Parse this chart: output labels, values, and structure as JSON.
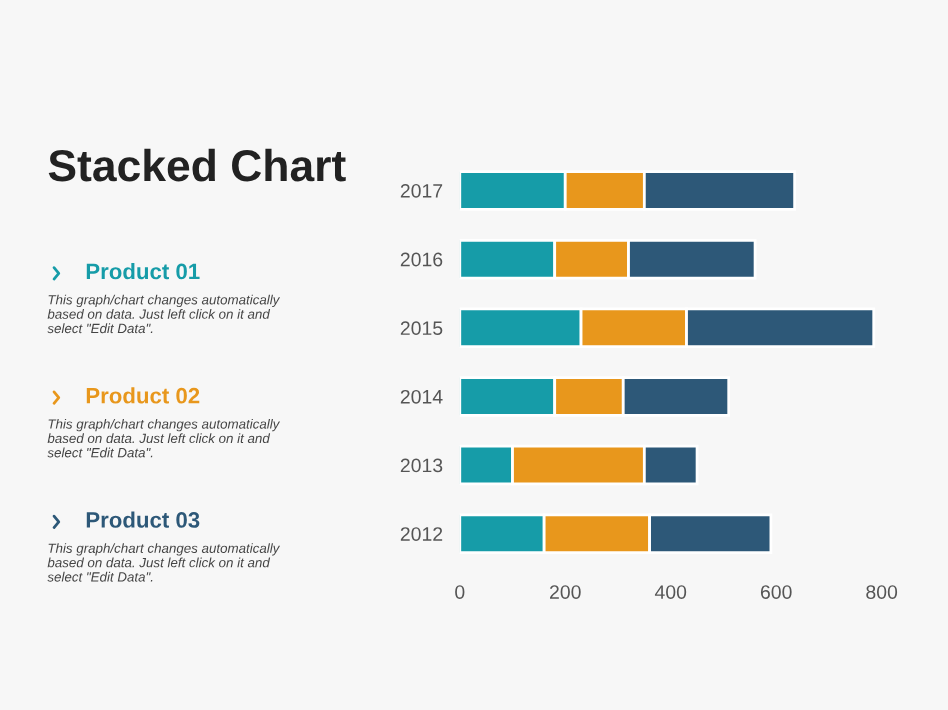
{
  "chart_data": {
    "type": "bar",
    "orientation": "horizontal",
    "stacked": true,
    "title": "Stacked Chart",
    "categories": [
      "2017",
      "2016",
      "2015",
      "2014",
      "2013",
      "2012"
    ],
    "series": [
      {
        "name": "Product 01",
        "color": "#169ca8",
        "values": [
          200,
          180,
          230,
          180,
          100,
          160
        ]
      },
      {
        "name": "Product 02",
        "color": "#e8971c",
        "values": [
          150,
          140,
          200,
          130,
          250,
          200
        ]
      },
      {
        "name": "Product 03",
        "color": "#2d5878",
        "values": [
          285,
          240,
          355,
          200,
          100,
          230
        ]
      }
    ],
    "xlim": [
      0,
      800
    ],
    "xticks": [
      0,
      200,
      400,
      600,
      800
    ],
    "grid": false,
    "legend": "left",
    "annotations": [
      "This graph/chart changes automatically based on data. Just left click on it and select \"Edit Data\".",
      "This graph/chart changes automatically based on data. Just left click on it and select \"Edit Data\".",
      "This graph/chart changes automatically based on data. Just left click on it and select \"Edit Data\"."
    ]
  }
}
